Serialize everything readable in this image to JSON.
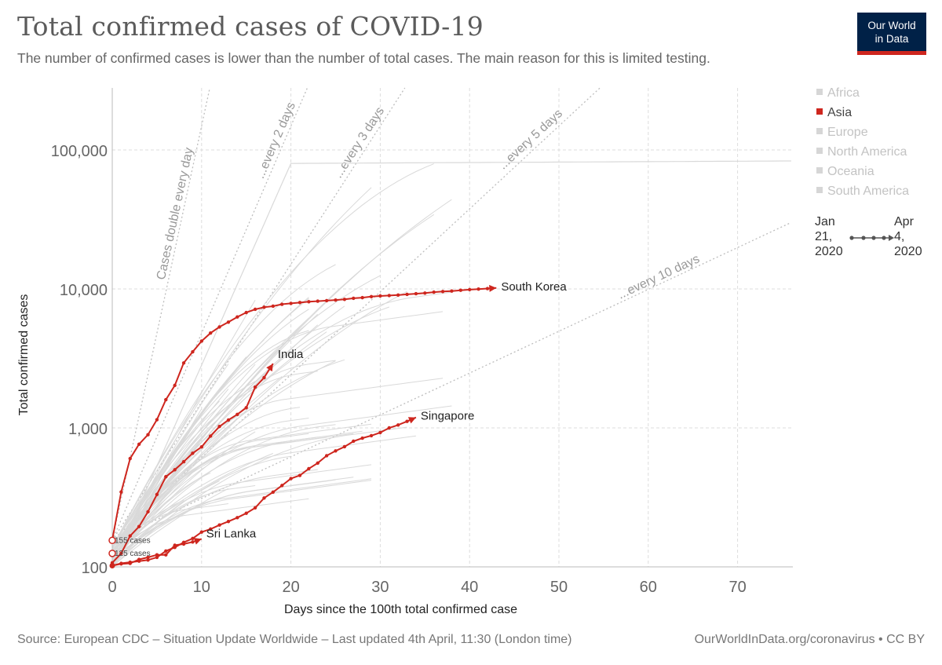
{
  "header": {
    "title": "Total confirmed cases of COVID-19",
    "subtitle": "The number of confirmed cases is lower than the number of total cases. The main reason for this is limited testing."
  },
  "logo": {
    "line1": "Our World",
    "line2": "in Data"
  },
  "legend": {
    "items": [
      {
        "label": "Africa",
        "active": false
      },
      {
        "label": "Asia",
        "active": true
      },
      {
        "label": "Europe",
        "active": false
      },
      {
        "label": "North America",
        "active": false
      },
      {
        "label": "Oceania",
        "active": false
      },
      {
        "label": "South America",
        "active": false
      }
    ]
  },
  "timeline": {
    "start": [
      "Jan",
      "21,",
      "2020"
    ],
    "end": [
      "Apr",
      "4,",
      "2020"
    ]
  },
  "footer": {
    "source": "Source: European CDC – Situation Update Worldwide – Last updated 4th April, 11:30 (London time)",
    "link": "OurWorldInData.org/coronavirus • CC BY"
  },
  "colors": {
    "highlight": "#ce261e",
    "background_lines": "#d9d9d9",
    "brand": "#002147"
  },
  "chart_data": {
    "type": "line",
    "title": "Total confirmed cases of COVID-19",
    "xlabel": "Days since the 100th total confirmed case",
    "ylabel": "Total confirmed cases",
    "y_scale": "log",
    "xlim": [
      0,
      76
    ],
    "ylim": [
      100,
      300000
    ],
    "x_ticks": [
      0,
      10,
      20,
      30,
      40,
      50,
      60,
      70
    ],
    "x_tick_labels": [
      "0",
      "10",
      "20",
      "30",
      "40",
      "50",
      "60",
      "70"
    ],
    "y_ticks": [
      100,
      1000,
      10000,
      100000
    ],
    "y_tick_labels": [
      "100",
      "1,000",
      "10,000",
      "100,000"
    ],
    "grid": true,
    "reference_lines": [
      {
        "label": "Cases double every day",
        "doubling_days": 1,
        "start": 155
      },
      {
        "label": "...every 2 days",
        "doubling_days": 2,
        "start": 155
      },
      {
        "label": "...every 3 days",
        "doubling_days": 3,
        "start": 155
      },
      {
        "label": "...every 5 days",
        "doubling_days": 5,
        "start": 155
      },
      {
        "label": "...every 10 days",
        "doubling_days": 10,
        "start": 155
      }
    ],
    "start_annotations": [
      {
        "label": "155 cases",
        "value": 155
      },
      {
        "label": "125 cases",
        "value": 125
      }
    ],
    "series": [
      {
        "name": "South Korea",
        "highlighted": true,
        "x": [
          0,
          1,
          2,
          3,
          4,
          5,
          6,
          7,
          8,
          9,
          10,
          11,
          12,
          13,
          14,
          15,
          16,
          17,
          18,
          19,
          20,
          21,
          22,
          23,
          24,
          25,
          26,
          27,
          28,
          29,
          30,
          31,
          32,
          33,
          34,
          35,
          36,
          37,
          38,
          39,
          40,
          41,
          42,
          43
        ],
        "y": [
          156,
          346,
          602,
          763,
          893,
          1146,
          1595,
          2022,
          2931,
          3526,
          4212,
          4812,
          5328,
          5766,
          6284,
          6767,
          7134,
          7382,
          7513,
          7755,
          7869,
          7979,
          8086,
          8162,
          8236,
          8320,
          8413,
          8565,
          8652,
          8799,
          8897,
          8961,
          9037,
          9137,
          9241,
          9332,
          9478,
          9583,
          9661,
          9786,
          9887,
          9976,
          10062,
          10156
        ]
      },
      {
        "name": "India",
        "highlighted": true,
        "x": [
          0,
          1,
          2,
          3,
          4,
          5,
          6,
          7,
          8,
          9,
          10,
          11,
          12,
          13,
          14,
          15,
          16,
          17,
          18
        ],
        "y": [
          107,
          125,
          167,
          195,
          249,
          332,
          445,
          500,
          571,
          657,
          730,
          873,
          1024,
          1139,
          1251,
          1397,
          1965,
          2301,
          2902
        ]
      },
      {
        "name": "Singapore",
        "highlighted": true,
        "x": [
          0,
          1,
          2,
          3,
          4,
          5,
          6,
          7,
          8,
          9,
          10,
          11,
          12,
          13,
          14,
          15,
          16,
          17,
          18,
          19,
          20,
          21,
          22,
          23,
          24,
          25,
          26,
          27,
          28,
          29,
          30,
          31,
          32,
          33,
          34
        ],
        "y": [
          102,
          106,
          108,
          110,
          112,
          117,
          130,
          138,
          150,
          160,
          178,
          187,
          200,
          212,
          226,
          243,
          266,
          313,
          345,
          385,
          432,
          455,
          509,
          558,
          631,
          683,
          732,
          802,
          844,
          879,
          926,
          1000,
          1049,
          1114,
          1189
        ]
      },
      {
        "name": "Sri Lanka",
        "highlighted": true,
        "x": [
          0,
          1,
          2,
          3,
          4,
          5,
          6,
          7,
          8,
          9,
          10
        ],
        "y": [
          102,
          105,
          106,
          113,
          117,
          122,
          122,
          143,
          146,
          151,
          159
        ]
      }
    ]
  }
}
